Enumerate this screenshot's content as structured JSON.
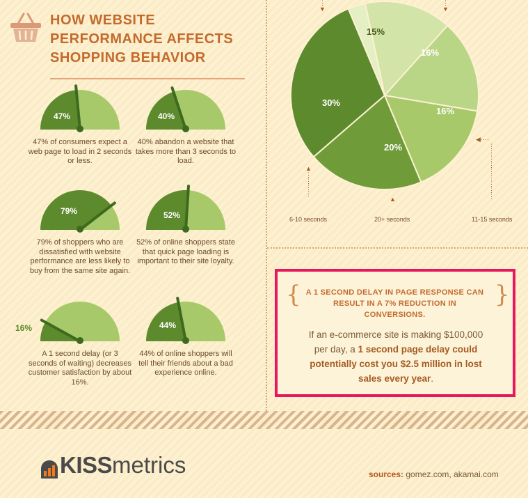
{
  "title": "HOW WEBSITE PERFORMANCE AFFECTS SHOPPING BEHAVIOR",
  "title_lines": [
    "HOW WEBSITE",
    "PERFORMANCE AFFECTS",
    "SHOPPING BEHAVIOR"
  ],
  "gauges": [
    {
      "pct_label": "47%",
      "value": 0.47,
      "caption": "47% of consumers expect a web page to load in 2 seconds or less."
    },
    {
      "pct_label": "40%",
      "value": 0.4,
      "caption": "40% abandon a website that takes more than 3 seconds to load."
    },
    {
      "pct_label": "79%",
      "value": 0.79,
      "caption": "79% of shoppers who are dissatisfied with website performance are less likely to buy from the same site again."
    },
    {
      "pct_label": "52%",
      "value": 0.52,
      "caption": "52% of online shoppers state that quick page loading is important to their site loyalty."
    },
    {
      "pct_label": "16%",
      "value": 0.16,
      "caption": "A 1 second delay (or 3 seconds of waiting) decreases customer satisfaction by about 16%."
    },
    {
      "pct_label": "44%",
      "value": 0.44,
      "caption": "44% of online shoppers will tell their friends about a bad experience online."
    }
  ],
  "chart_data": {
    "type": "pie",
    "slices": [
      {
        "label": "30%",
        "value": 30,
        "color": "#5e8a2e"
      },
      {
        "label": "20%",
        "value": 20,
        "color": "#6f9b38"
      },
      {
        "label": "16%",
        "value": 16,
        "color": "#a7c96a"
      },
      {
        "label": "16%",
        "value": 16,
        "color": "#b9d586"
      },
      {
        "label": "15%",
        "value": 15,
        "color": "#d3e4a8"
      },
      {
        "label": "",
        "value": 3,
        "color": "#e4efc4"
      }
    ],
    "axis_labels": [
      "6-10 seconds",
      "20+ seconds",
      "11-15 seconds"
    ]
  },
  "callout": {
    "headline": "A 1 SECOND DELAY IN PAGE RESPONSE CAN RESULT IN A 7% REDUCTION IN CONVERSIONS.",
    "body_pre": "If an e-commerce site is making $100,000 per day, a ",
    "body_bold": "1 second page delay could potentially cost you $2.5 million in lost sales every year",
    "body_post": "."
  },
  "logo": {
    "brand_bold": "KISS",
    "brand_rest": "metrics"
  },
  "sources": {
    "label": "sources:",
    "text": "gomez.com, akamai.com"
  },
  "colors": {
    "accent": "#e8175d",
    "title": "#c36a2c",
    "gauge_dark": "#5e8a2e",
    "gauge_light": "#a7c96a"
  }
}
